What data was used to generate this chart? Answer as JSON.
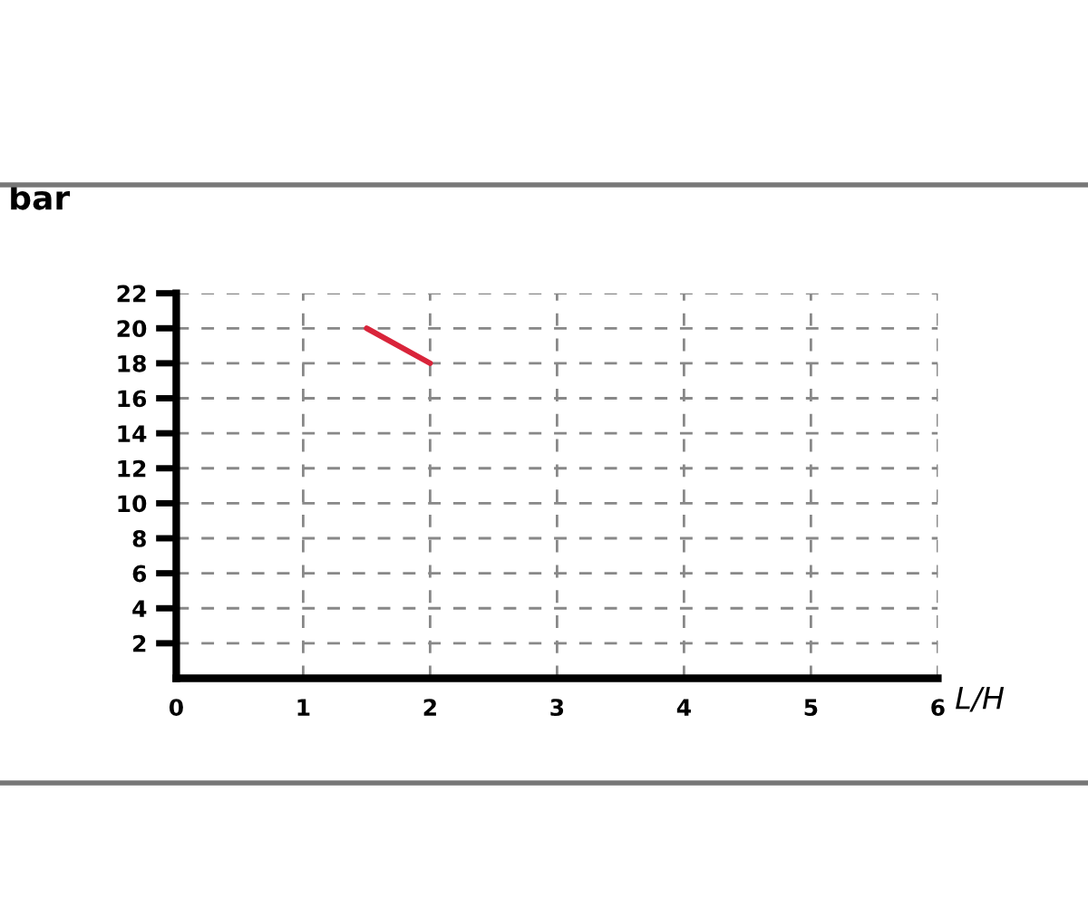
{
  "chart_data": {
    "type": "line",
    "ylabel": "bar",
    "xlabel": "L/H",
    "x": [
      1.5,
      2
    ],
    "series": [
      {
        "color": "#d9243a",
        "values": [
          20,
          18
        ]
      }
    ],
    "xlim": [
      0,
      6
    ],
    "xticks": [
      0,
      1,
      2,
      3,
      4,
      5,
      6
    ],
    "ylim": [
      0,
      22
    ],
    "yticks": [
      2,
      4,
      6,
      8,
      10,
      12,
      14,
      16,
      18,
      20,
      22
    ],
    "grid": true,
    "line_style": "solid"
  }
}
